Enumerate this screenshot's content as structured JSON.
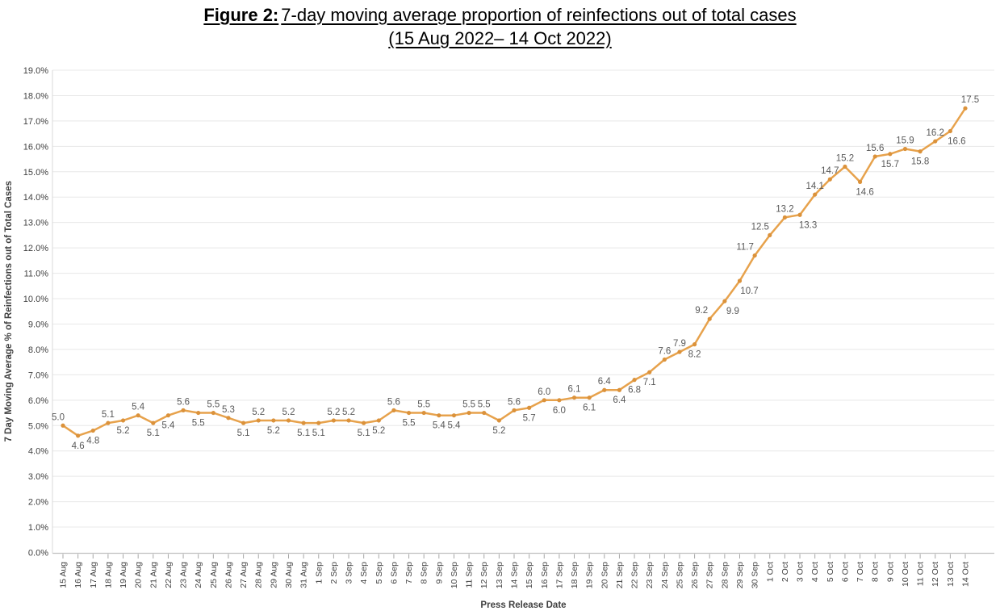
{
  "figure": {
    "title_prefix": "Figure 2:",
    "title_text": "7-day moving average proportion of reinfections out of total cases",
    "title_line2": "(15 Aug 2022– 14 Oct 2022)"
  },
  "chart_data": {
    "type": "line",
    "title": "Figure 2: 7-day moving average proportion of reinfections out of total cases (15 Aug 2022– 14 Oct 2022)",
    "xlabel": "Press Release Date",
    "ylabel": "7 Day Moving Average % of Reinfections out of Total Cases",
    "x": [
      "15 Aug",
      "16 Aug",
      "17 Aug",
      "18 Aug",
      "19 Aug",
      "20 Aug",
      "21 Aug",
      "22 Aug",
      "23 Aug",
      "24 Aug",
      "25 Aug",
      "26 Aug",
      "27 Aug",
      "28 Aug",
      "29 Aug",
      "30 Aug",
      "31 Aug",
      "1 Sep",
      "2 Sep",
      "3 Sep",
      "4 Sep",
      "5 Sep",
      "6 Sep",
      "7 Sep",
      "8 Sep",
      "9 Sep",
      "10 Sep",
      "11 Sep",
      "12 Sep",
      "13 Sep",
      "14 Sep",
      "15 Sep",
      "16 Sep",
      "17 Sep",
      "18 Sep",
      "19 Sep",
      "20 Sep",
      "21 Sep",
      "22 Sep",
      "23 Sep",
      "24 Sep",
      "25 Sep",
      "26 Sep",
      "27 Sep",
      "28 Sep",
      "29 Sep",
      "30 Sep",
      "1 Oct",
      "2 Oct",
      "3 Oct",
      "4 Oct",
      "5 Oct",
      "6 Oct",
      "7 Oct",
      "8 Oct",
      "9 Oct",
      "10 Oct",
      "11 Oct",
      "12 Oct",
      "13 Oct",
      "14 Oct"
    ],
    "values": [
      5.0,
      4.6,
      4.8,
      5.1,
      5.2,
      5.4,
      5.1,
      5.4,
      5.6,
      5.5,
      5.5,
      5.3,
      5.1,
      5.2,
      5.2,
      5.2,
      5.1,
      5.1,
      5.2,
      5.2,
      5.1,
      5.2,
      5.6,
      5.5,
      5.5,
      5.4,
      5.4,
      5.5,
      5.5,
      5.2,
      5.6,
      5.7,
      6.0,
      6.0,
      6.1,
      6.1,
      6.4,
      6.4,
      6.8,
      7.1,
      7.6,
      7.9,
      8.2,
      9.2,
      9.9,
      10.7,
      11.7,
      12.5,
      13.2,
      13.3,
      14.1,
      14.7,
      15.2,
      14.6,
      15.6,
      15.7,
      15.9,
      15.8,
      16.2,
      16.6,
      17.5
    ],
    "label_side": [
      "a",
      "b",
      "b",
      "a",
      "b",
      "a",
      "b",
      "b",
      "a",
      "b",
      "a",
      "a",
      "b",
      "a",
      "b",
      "a",
      "b",
      "b",
      "a",
      "a",
      "b",
      "b",
      "a",
      "b",
      "a",
      "b",
      "b",
      "a",
      "a",
      "b",
      "a",
      "b",
      "a",
      "b",
      "a",
      "b",
      "a",
      "b",
      "b",
      "b",
      "a",
      "a",
      "b",
      "a",
      "b",
      "b",
      "a",
      "a",
      "a",
      "b",
      "a",
      "a",
      "a",
      "b",
      "a",
      "b",
      "a",
      "b",
      "a",
      "b",
      "a"
    ],
    "label_dx": {
      "0": -6,
      "43": -10,
      "44": 10,
      "45": 12,
      "46": -12,
      "47": -12,
      "49": 10,
      "53": 6,
      "59": 8,
      "60": 6
    },
    "yticks": [
      "0.0%",
      "1.0%",
      "2.0%",
      "3.0%",
      "4.0%",
      "5.0%",
      "6.0%",
      "7.0%",
      "8.0%",
      "9.0%",
      "10.0%",
      "11.0%",
      "12.0%",
      "13.0%",
      "14.0%",
      "15.0%",
      "16.0%",
      "17.0%",
      "18.0%",
      "19.0%"
    ],
    "ylim": [
      0.0,
      19.0
    ],
    "ytick_step": 1.0,
    "grid": true,
    "legend": "none",
    "series_name": "7-day moving average % of reinfections",
    "line_color": "#E7A24C",
    "marker_color": "#DB923B",
    "data_label_color": "#595959",
    "axis_text_color": "#404040",
    "grid_color": "#E8E8E8",
    "axis_line_color": "#BFBFBF"
  }
}
